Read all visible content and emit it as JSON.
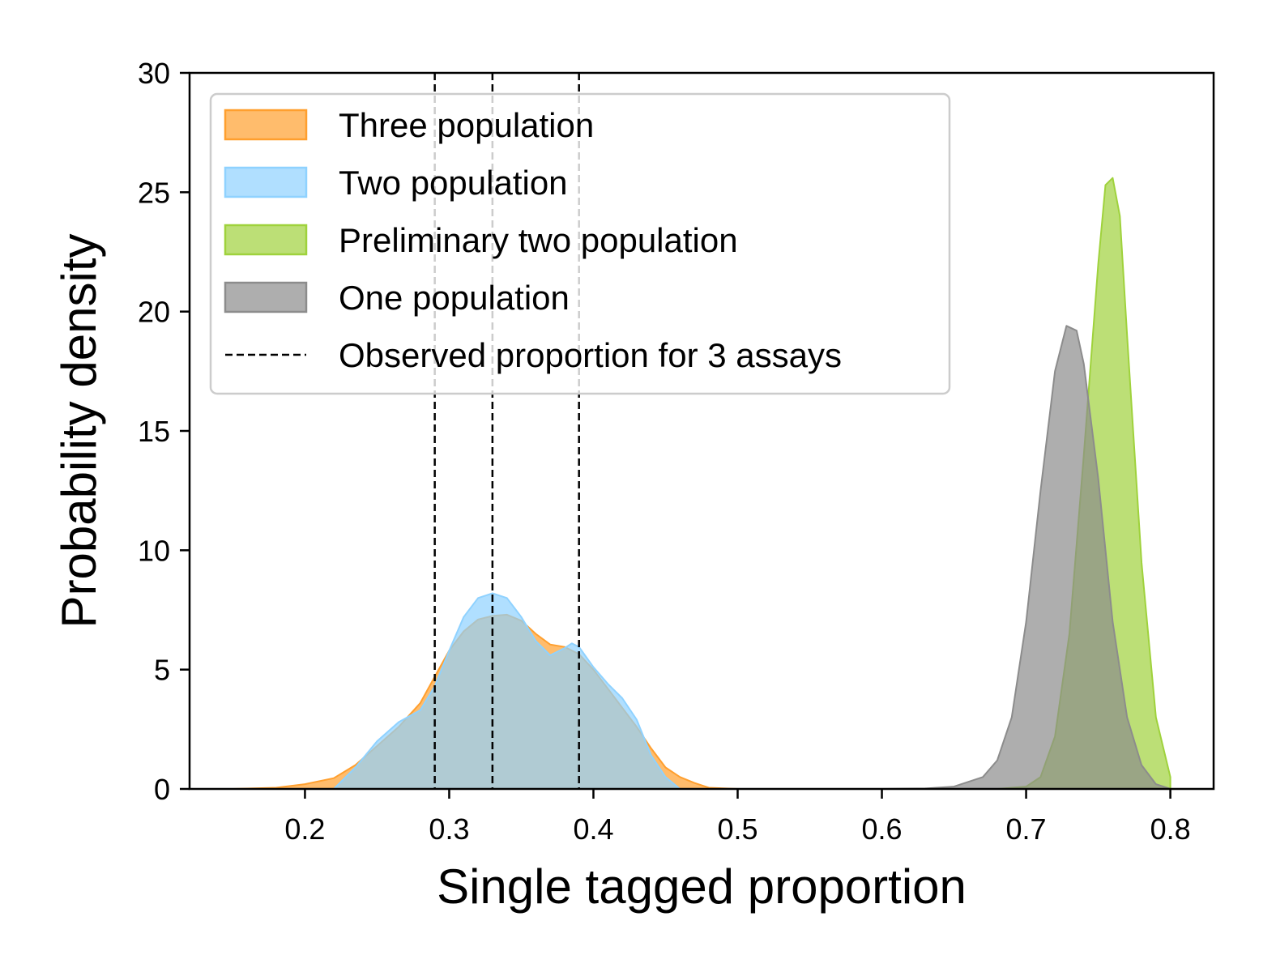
{
  "chart_data": {
    "type": "area",
    "xlabel": "Single tagged proportion",
    "ylabel": "Probability density",
    "xlim": [
      0.12,
      0.83
    ],
    "ylim": [
      0,
      30
    ],
    "x_ticks": [
      "0.2",
      "0.3",
      "0.4",
      "0.5",
      "0.6",
      "0.7",
      "0.8"
    ],
    "x_tick_values": [
      0.2,
      0.3,
      0.4,
      0.5,
      0.6,
      0.7,
      0.8
    ],
    "y_ticks": [
      "0",
      "5",
      "10",
      "15",
      "20",
      "25",
      "30"
    ],
    "y_tick_values": [
      0,
      5,
      10,
      15,
      20,
      25,
      30
    ],
    "grid": false,
    "legend_position": "top-left",
    "series": [
      {
        "name": "Three population",
        "color": "#ff9f2e",
        "kind": "density",
        "points": [
          [
            0.15,
            0
          ],
          [
            0.18,
            0.05
          ],
          [
            0.2,
            0.2
          ],
          [
            0.22,
            0.45
          ],
          [
            0.235,
            1.0
          ],
          [
            0.25,
            1.8
          ],
          [
            0.265,
            2.6
          ],
          [
            0.28,
            3.6
          ],
          [
            0.29,
            4.7
          ],
          [
            0.3,
            5.8
          ],
          [
            0.31,
            6.6
          ],
          [
            0.32,
            7.1
          ],
          [
            0.33,
            7.25
          ],
          [
            0.34,
            7.3
          ],
          [
            0.35,
            7.05
          ],
          [
            0.36,
            6.5
          ],
          [
            0.37,
            6.05
          ],
          [
            0.38,
            5.95
          ],
          [
            0.39,
            5.65
          ],
          [
            0.4,
            5.0
          ],
          [
            0.41,
            4.2
          ],
          [
            0.42,
            3.4
          ],
          [
            0.43,
            2.6
          ],
          [
            0.44,
            1.7
          ],
          [
            0.45,
            0.9
          ],
          [
            0.46,
            0.5
          ],
          [
            0.47,
            0.25
          ],
          [
            0.48,
            0.05
          ],
          [
            0.5,
            0
          ]
        ]
      },
      {
        "name": "Two population",
        "color": "#8fd2ff",
        "kind": "density",
        "points": [
          [
            0.22,
            0
          ],
          [
            0.235,
            0.9
          ],
          [
            0.25,
            2.0
          ],
          [
            0.265,
            2.8
          ],
          [
            0.28,
            3.3
          ],
          [
            0.29,
            4.3
          ],
          [
            0.3,
            5.8
          ],
          [
            0.31,
            7.2
          ],
          [
            0.32,
            8.0
          ],
          [
            0.33,
            8.2
          ],
          [
            0.34,
            8.0
          ],
          [
            0.35,
            7.2
          ],
          [
            0.36,
            6.2
          ],
          [
            0.37,
            5.6
          ],
          [
            0.38,
            5.9
          ],
          [
            0.385,
            6.1
          ],
          [
            0.39,
            5.95
          ],
          [
            0.4,
            5.1
          ],
          [
            0.41,
            4.4
          ],
          [
            0.42,
            3.8
          ],
          [
            0.43,
            2.9
          ],
          [
            0.44,
            1.4
          ],
          [
            0.45,
            0.5
          ],
          [
            0.46,
            0
          ]
        ]
      },
      {
        "name": "Preliminary two population",
        "color": "#9fd23c",
        "kind": "density",
        "points": [
          [
            0.68,
            0
          ],
          [
            0.7,
            0.1
          ],
          [
            0.71,
            0.5
          ],
          [
            0.72,
            2.2
          ],
          [
            0.73,
            6.5
          ],
          [
            0.74,
            14.0
          ],
          [
            0.75,
            22.0
          ],
          [
            0.755,
            25.3
          ],
          [
            0.76,
            25.6
          ],
          [
            0.765,
            24.0
          ],
          [
            0.77,
            19.0
          ],
          [
            0.78,
            9.5
          ],
          [
            0.79,
            3.0
          ],
          [
            0.8,
            0.5
          ]
        ]
      },
      {
        "name": "One population",
        "color": "#8c8c8c",
        "kind": "density",
        "points": [
          [
            0.6,
            0
          ],
          [
            0.63,
            0.02
          ],
          [
            0.65,
            0.1
          ],
          [
            0.67,
            0.5
          ],
          [
            0.68,
            1.2
          ],
          [
            0.69,
            3.0
          ],
          [
            0.7,
            7.0
          ],
          [
            0.71,
            12.5
          ],
          [
            0.72,
            17.5
          ],
          [
            0.728,
            19.4
          ],
          [
            0.735,
            19.2
          ],
          [
            0.74,
            17.8
          ],
          [
            0.75,
            13.0
          ],
          [
            0.76,
            7.0
          ],
          [
            0.77,
            3.0
          ],
          [
            0.78,
            1.0
          ],
          [
            0.79,
            0.2
          ],
          [
            0.8,
            0
          ]
        ]
      },
      {
        "name": "Observed proportion for 3 assays",
        "color": "#000000",
        "kind": "vline",
        "x_values": [
          0.29,
          0.33,
          0.39
        ]
      }
    ]
  }
}
